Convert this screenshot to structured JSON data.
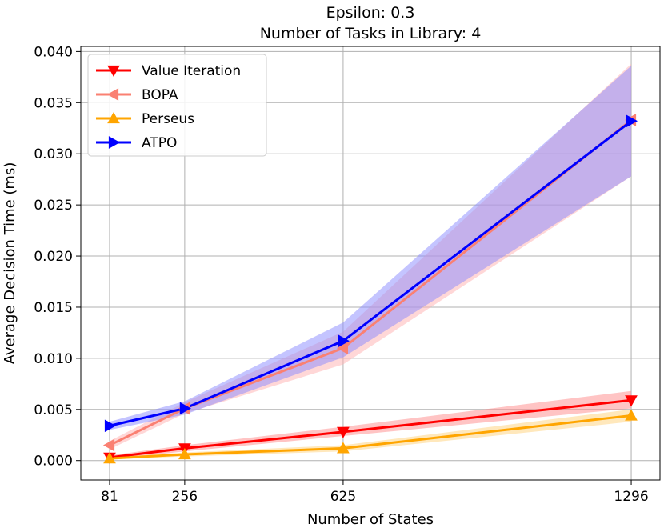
{
  "chart_data": {
    "type": "line",
    "title": "Epsilon: 0.3",
    "subtitle": "Number of Tasks in Library: 4",
    "xlabel": "Number of States",
    "ylabel": "Average Decision Time (ms)",
    "x": [
      81,
      256,
      625,
      1296
    ],
    "x_ticks": [
      "81",
      "256",
      "625",
      "1296"
    ],
    "y_ticks": [
      "0.000",
      "0.005",
      "0.010",
      "0.015",
      "0.020",
      "0.025",
      "0.030",
      "0.035",
      "0.040"
    ],
    "xlim": [
      14,
      1363
    ],
    "ylim": [
      -0.0019,
      0.0405
    ],
    "grid": true,
    "legend_placement": "top-left",
    "series": [
      {
        "name": "Value Iteration",
        "color": "#ff0000",
        "band_color": "#ff8a8a",
        "marker": "triangle-down",
        "values": [
          0.0003,
          0.0012,
          0.0028,
          0.0059
        ],
        "lower": [
          0.0001,
          0.0009,
          0.0024,
          0.0051
        ],
        "upper": [
          0.0005,
          0.0015,
          0.0033,
          0.0068
        ]
      },
      {
        "name": "BOPA",
        "color": "#fa8072",
        "band_color": "#ffb0b0",
        "marker": "triangle-left",
        "values": [
          0.0015,
          0.0051,
          0.011,
          0.0333
        ],
        "lower": [
          0.0011,
          0.0046,
          0.0094,
          0.0278
        ],
        "upper": [
          0.0019,
          0.0057,
          0.0126,
          0.0388
        ]
      },
      {
        "name": "Perseus",
        "color": "#ffa500",
        "band_color": "#ffd27a",
        "marker": "triangle-up",
        "values": [
          0.0002,
          0.0006,
          0.0012,
          0.0044
        ],
        "lower": [
          0.0001,
          0.0004,
          0.0009,
          0.0038
        ],
        "upper": [
          0.0003,
          0.0008,
          0.0015,
          0.005
        ]
      },
      {
        "name": "ATPO",
        "color": "#0000ff",
        "band_color": "#8a8aff",
        "marker": "triangle-right",
        "values": [
          0.0034,
          0.0051,
          0.0117,
          0.0332
        ],
        "lower": [
          0.003,
          0.0045,
          0.0101,
          0.0278
        ],
        "upper": [
          0.0038,
          0.0058,
          0.0135,
          0.0386
        ]
      }
    ]
  }
}
